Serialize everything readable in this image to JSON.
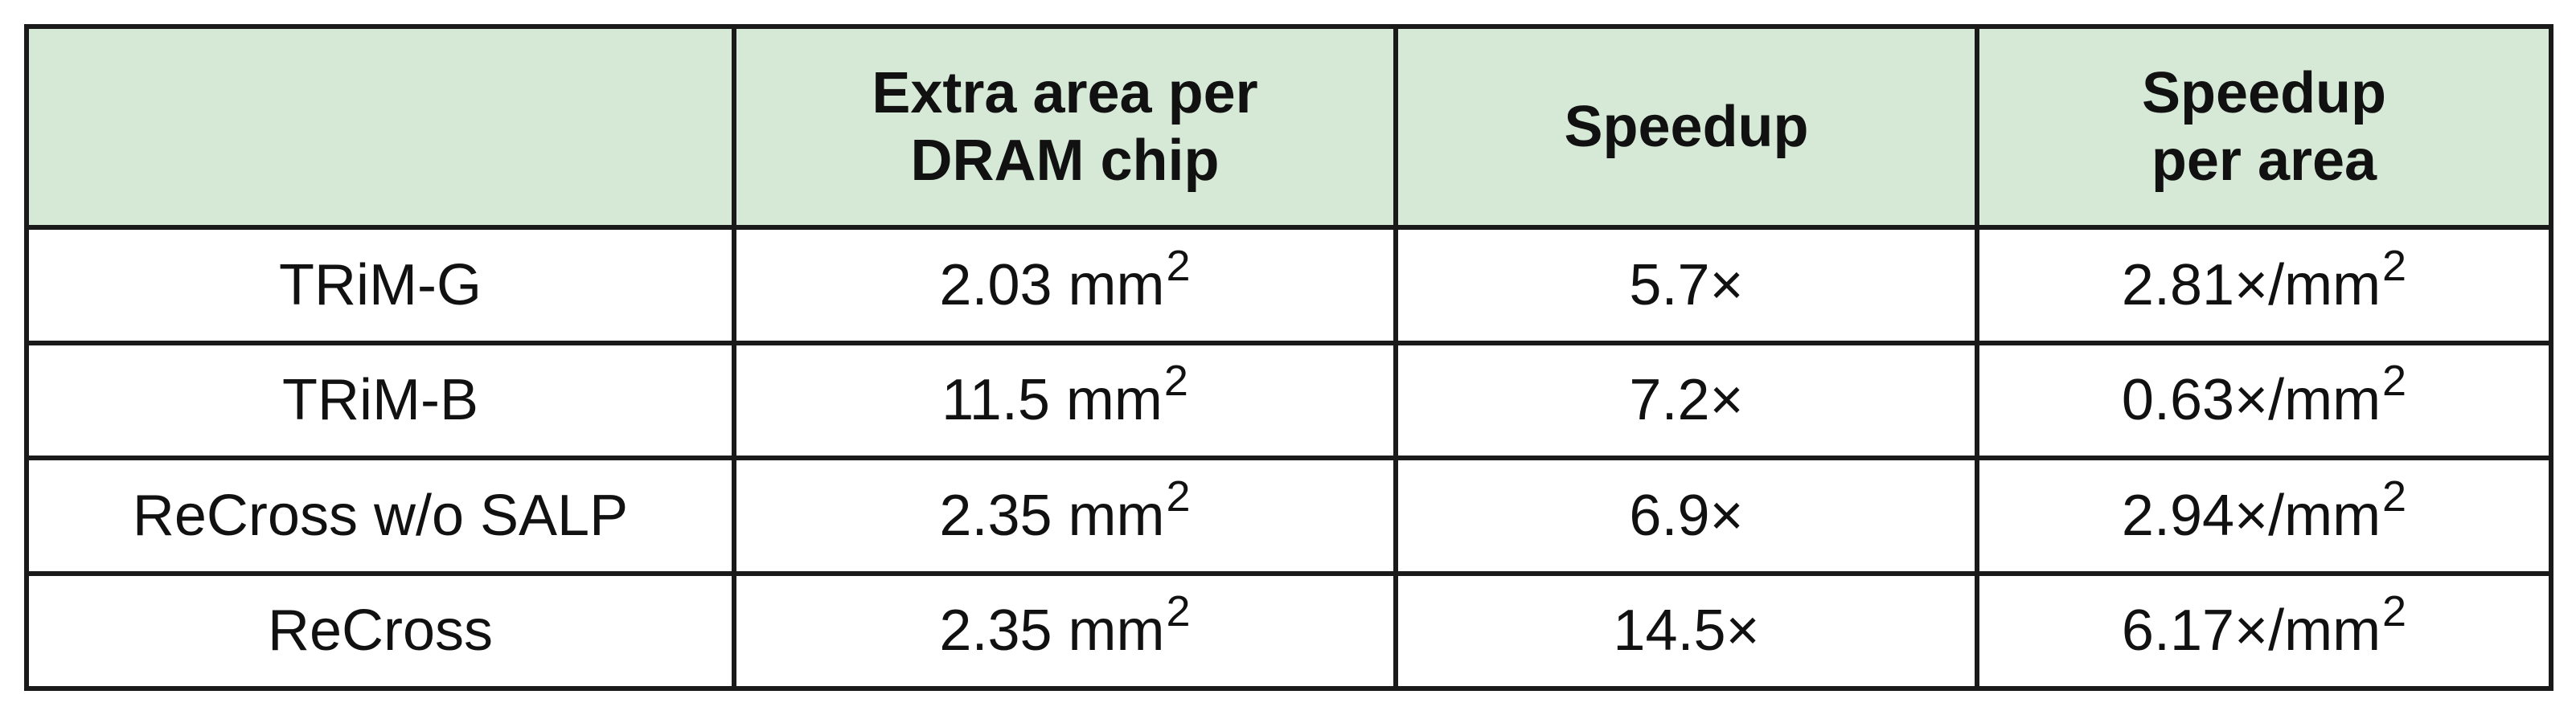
{
  "table": {
    "headers": [
      {
        "lines": [
          ""
        ]
      },
      {
        "lines": [
          "Extra area per",
          "DRAM chip"
        ]
      },
      {
        "lines": [
          "Speedup"
        ]
      },
      {
        "lines": [
          "Speedup",
          "per area"
        ]
      }
    ],
    "rows": [
      {
        "name": "TRiM-G",
        "area": {
          "value": "2.03 mm",
          "sup": "2"
        },
        "speedup": "5.7×",
        "per_area": {
          "value": "2.81×/mm",
          "sup": "2"
        }
      },
      {
        "name": "TRiM-B",
        "area": {
          "value": "11.5 mm",
          "sup": "2"
        },
        "speedup": "7.2×",
        "per_area": {
          "value": "0.63×/mm",
          "sup": "2"
        }
      },
      {
        "name": "ReCross w/o SALP",
        "area": {
          "value": "2.35 mm",
          "sup": "2"
        },
        "speedup": "6.9×",
        "per_area": {
          "value": "2.94×/mm",
          "sup": "2"
        }
      },
      {
        "name": "ReCross",
        "area": {
          "value": "2.35 mm",
          "sup": "2"
        },
        "speedup": "14.5×",
        "per_area": {
          "value": "6.17×/mm",
          "sup": "2"
        }
      }
    ]
  },
  "colors": {
    "header_bg": "#d6e9d7",
    "border": "#1a1a1a",
    "text": "#111111"
  }
}
